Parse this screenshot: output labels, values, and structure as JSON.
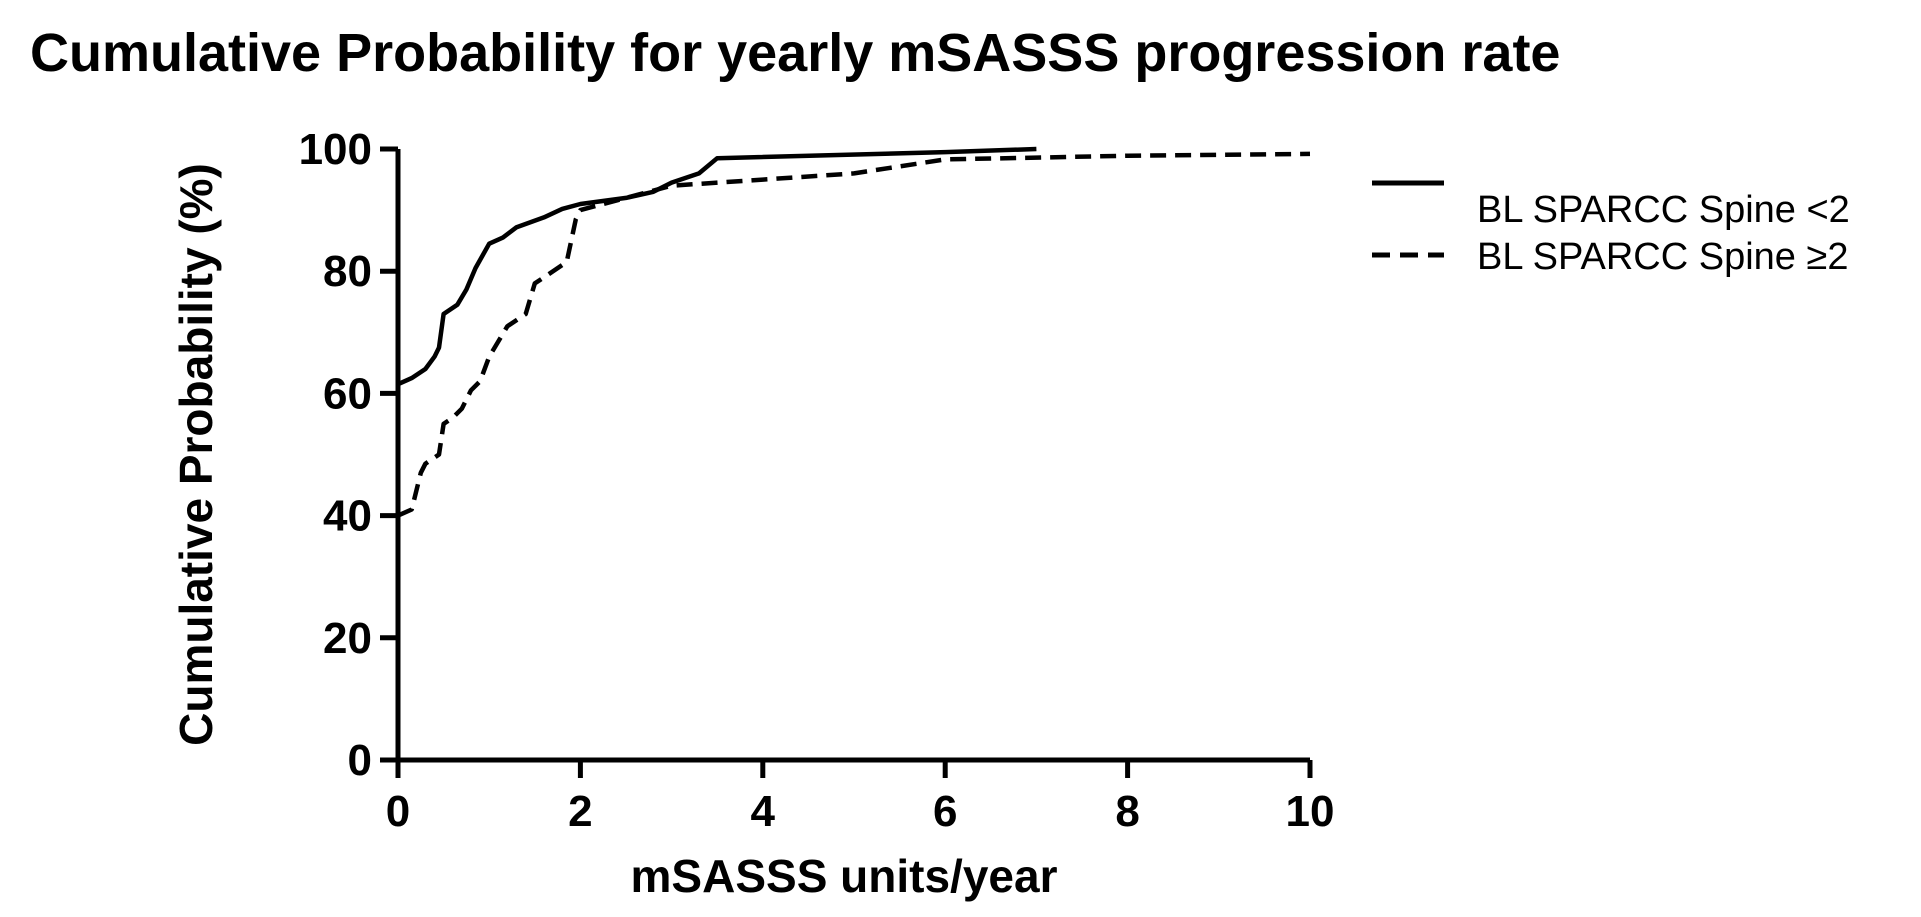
{
  "chart_data": {
    "type": "line",
    "title": "Cumulative Probability for yearly mSASSS progression rate",
    "xlabel": "mSASSS units/year",
    "ylabel": "Cumulative Probability (%)",
    "xlim": [
      0,
      10
    ],
    "ylim": [
      0,
      100
    ],
    "xticks": [
      "0",
      "2",
      "4",
      "6",
      "8",
      "10"
    ],
    "yticks": [
      "0",
      "20",
      "40",
      "60",
      "80",
      "100"
    ],
    "grid": false,
    "legend_position": "top-right",
    "series": [
      {
        "name": "BL SPARCC Spine <2",
        "line_style": "solid",
        "color": "#000000",
        "x": [
          0,
          0.15,
          0.3,
          0.4,
          0.45,
          0.5,
          0.65,
          0.75,
          0.85,
          1.0,
          1.15,
          1.3,
          1.6,
          1.8,
          2.0,
          2.5,
          2.8,
          3.0,
          3.3,
          3.5,
          6.0,
          7.0
        ],
        "y": [
          61.5,
          62.5,
          64,
          66,
          67.5,
          73,
          74.5,
          77,
          80.5,
          84.5,
          85.5,
          87.2,
          88.8,
          90.2,
          91,
          92,
          93,
          94.5,
          96,
          98.5,
          99.5,
          100
        ]
      },
      {
        "name": "BL SPARCC Spine ≥2",
        "line_style": "dashed",
        "color": "#000000",
        "x": [
          0,
          0.15,
          0.25,
          0.3,
          0.45,
          0.5,
          0.6,
          0.7,
          0.8,
          0.9,
          1.0,
          1.2,
          1.4,
          1.5,
          1.65,
          1.85,
          1.95,
          2.0,
          2.5,
          3.0,
          4.0,
          5.0,
          6.0,
          7.0,
          8.0,
          10.0
        ],
        "y": [
          40,
          41,
          47,
          48.5,
          50,
          55,
          56,
          57.5,
          60.5,
          62,
          66,
          71,
          73,
          78,
          79.5,
          81.5,
          88.5,
          90,
          92,
          94,
          95,
          96,
          98.3,
          98.6,
          98.9,
          99.2
        ]
      }
    ]
  }
}
